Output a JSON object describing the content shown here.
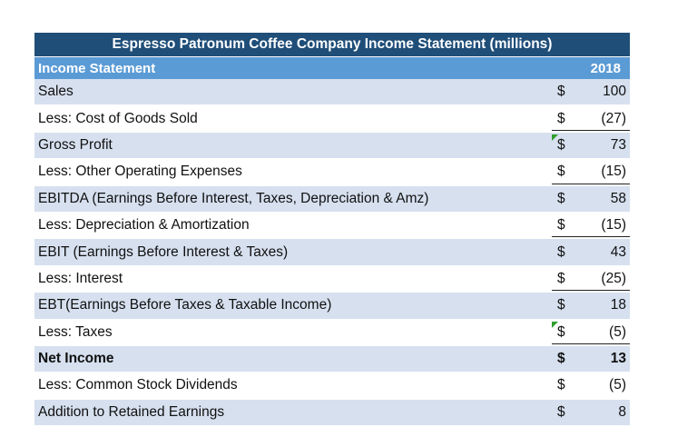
{
  "title": "Espresso Patronum Coffee Company Income Statement (millions)",
  "header": {
    "label": "Income Statement",
    "year": "2018"
  },
  "rows": [
    {
      "label": "Sales",
      "currency": "$",
      "value": "100"
    },
    {
      "label": "Less: Cost of Goods Sold",
      "currency": "$",
      "value": "(27)"
    },
    {
      "label": "Gross Profit",
      "currency": "$",
      "value": "73"
    },
    {
      "label": "Less: Other Operating Expenses",
      "currency": "$",
      "value": "(15)"
    },
    {
      "label": "EBITDA (Earnings Before Interest, Taxes, Depreciation & Amz)",
      "currency": "$",
      "value": "58"
    },
    {
      "label": "Less: Depreciation & Amortization",
      "currency": "$",
      "value": "(15)"
    },
    {
      "label": "EBIT (Earnings Before Interest & Taxes)",
      "currency": "$",
      "value": "43"
    },
    {
      "label": "Less: Interest",
      "currency": "$",
      "value": "(25)"
    },
    {
      "label": "EBT(Earnings Before Taxes & Taxable Income)",
      "currency": "$",
      "value": "18"
    },
    {
      "label": "Less: Taxes",
      "currency": "$",
      "value": "(5)"
    },
    {
      "label": "Net Income",
      "currency": "$",
      "value": "13"
    },
    {
      "label": "Less: Common Stock Dividends",
      "currency": "$",
      "value": "(5)"
    },
    {
      "label": "Addition to Retained Earnings",
      "currency": "$",
      "value": "8"
    }
  ],
  "colors": {
    "title_bg": "#1f4e79",
    "header_bg": "#5b9bd5",
    "band_bg": "#d6e0ef",
    "comment_marker": "#2e9e2e"
  }
}
